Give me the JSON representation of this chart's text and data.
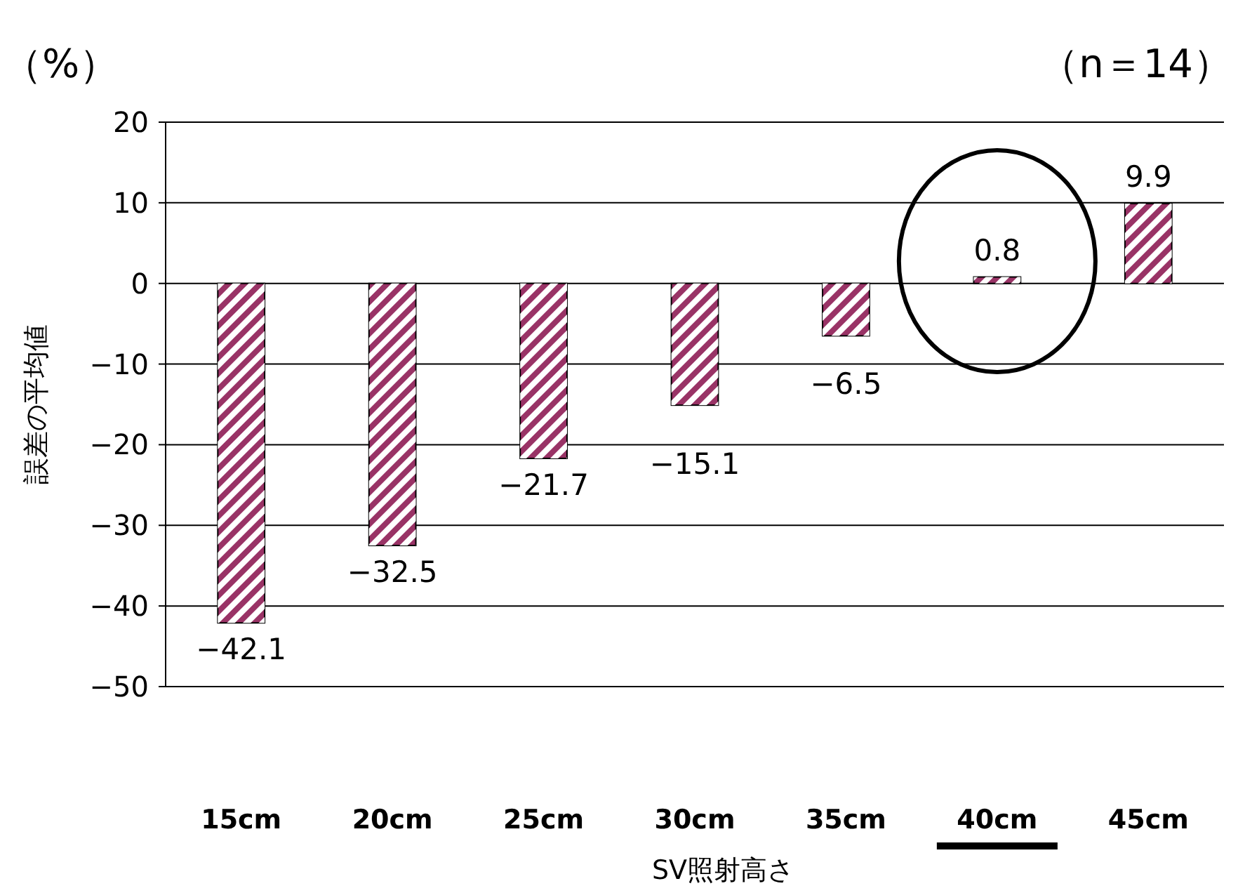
{
  "chart_data": {
    "type": "bar",
    "ylabel": "誤差の平均値",
    "xlabel": "SV照射高さ",
    "annotations": [
      "（%）",
      "（n＝14）"
    ],
    "categories": [
      "15cm",
      "20cm",
      "25cm",
      "30cm",
      "35cm",
      "40cm",
      "45cm"
    ],
    "values": [
      -42.1,
      -32.5,
      -21.7,
      -15.1,
      -6.5,
      0.8,
      9.9
    ],
    "color": "#993366",
    "ylim": [
      -50,
      20
    ],
    "yticks": [
      -50,
      -40,
      -30,
      -20,
      -10,
      0,
      10,
      20
    ],
    "grid": "y",
    "data_labels": true
  }
}
